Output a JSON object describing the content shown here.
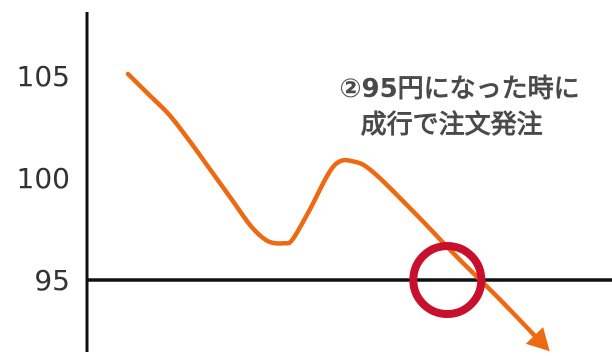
{
  "chart_data": {
    "type": "line",
    "title": "",
    "xlabel": "",
    "ylabel": "",
    "ylim": [
      91,
      108
    ],
    "y_ticks": [
      {
        "value": 105,
        "label": "105"
      },
      {
        "value": 100,
        "label": "100"
      },
      {
        "value": 95,
        "label": "95"
      }
    ],
    "reference_line": {
      "value": 95
    },
    "series": [
      {
        "x": [
          0,
          5,
          10,
          15,
          20,
          25,
          30,
          34,
          38,
          40,
          44,
          50,
          55,
          60,
          70,
          80,
          90,
          100
        ],
        "values": [
          105.1,
          104.1,
          103.1,
          101.8,
          100.4,
          99.0,
          97.6,
          96.9,
          96.8,
          97.0,
          98.4,
          100.6,
          100.8,
          100.2,
          98.2,
          96.1,
          94.1,
          92.0
        ],
        "end_marker": "arrow",
        "color": "#ee6a12"
      }
    ],
    "highlight_circle": {
      "x": 77.5,
      "y": 95.0,
      "color": "#c8102e"
    },
    "annotation": {
      "lines": [
        "②95円になった時に",
        "成行で注文発注"
      ],
      "x": 80,
      "y": 102.5
    },
    "grid": false,
    "legend": "none"
  }
}
